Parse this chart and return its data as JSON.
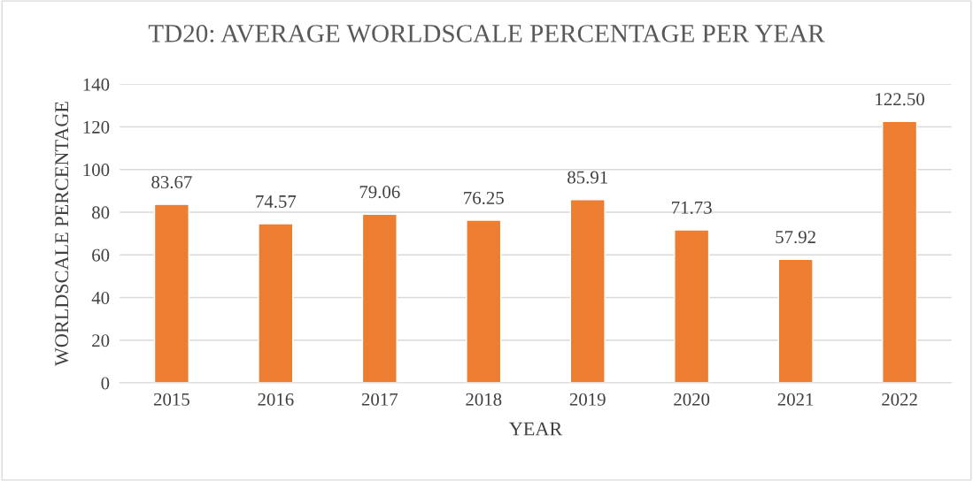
{
  "chart_data": {
    "type": "bar",
    "title": "TD20: AVERAGE WORLDSCALE PERCENTAGE PER YEAR",
    "xlabel": "YEAR",
    "ylabel": "WORLDSCALE PERCENTAGE",
    "categories": [
      "2015",
      "2016",
      "2017",
      "2018",
      "2019",
      "2020",
      "2021",
      "2022"
    ],
    "values": [
      83.67,
      74.57,
      79.06,
      76.25,
      85.91,
      71.73,
      57.92,
      122.5
    ],
    "value_labels": [
      "83.67",
      "74.57",
      "79.06",
      "76.25",
      "85.91",
      "71.73",
      "57.92",
      "122.50"
    ],
    "color": "#ed7d31",
    "ylim": [
      0,
      140
    ],
    "yticks": [
      0,
      20,
      40,
      60,
      80,
      100,
      120,
      140
    ],
    "grid": "y",
    "legend": false
  }
}
